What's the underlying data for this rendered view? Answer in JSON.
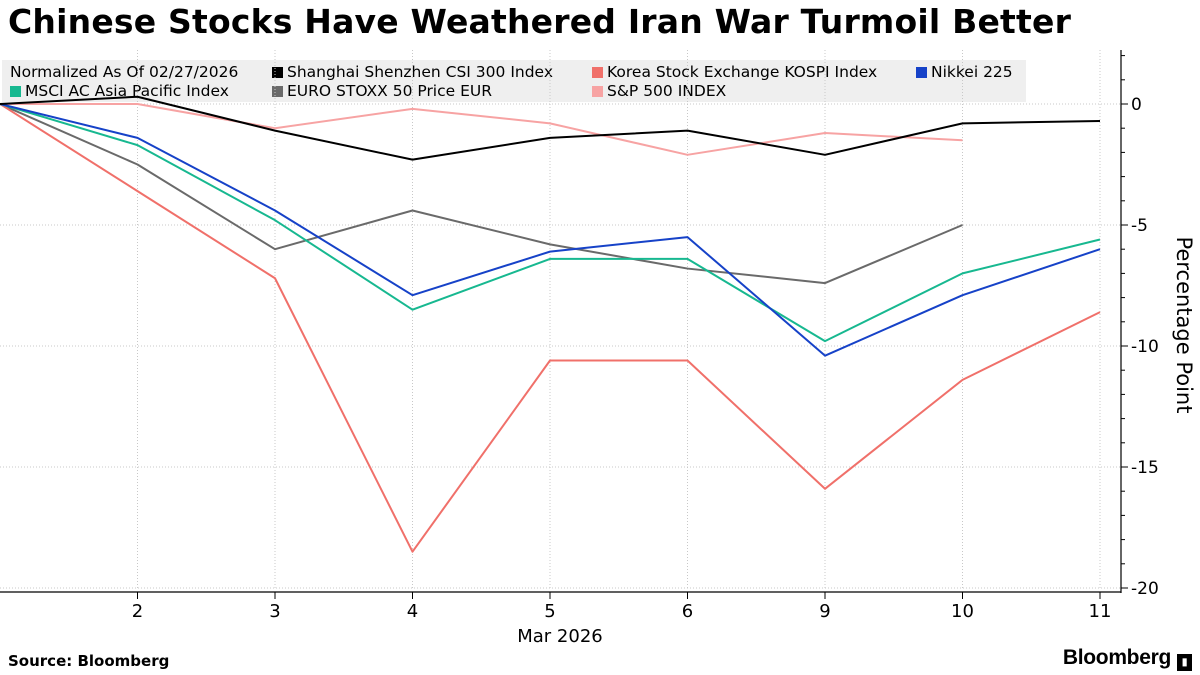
{
  "page": {
    "source": "Source: Bloomberg",
    "brand": "Bloomberg"
  },
  "chart_data": {
    "type": "line",
    "title": "Chinese Stocks Have Weathered Iran War Turmoil Better",
    "legend_note": "Normalized As Of 02/27/2026",
    "xlabel": "Mar 2026",
    "ylabel": "Percentage Point",
    "x": [
      "2/27",
      "2",
      "3",
      "4",
      "5",
      "6",
      "9",
      "10",
      "11"
    ],
    "x_tick_labels": [
      "2",
      "3",
      "4",
      "5",
      "6",
      "9",
      "10",
      "11"
    ],
    "y_ticks": [
      0,
      -5,
      -10,
      -15,
      -20
    ],
    "ylim": [
      -20.2,
      2.2
    ],
    "grid": true,
    "legend_position": "top-left",
    "series": [
      {
        "name": "Shanghai Shenzhen CSI 300 Index",
        "color": "#000000",
        "values": [
          0,
          0.3,
          -1.1,
          -2.3,
          -1.4,
          -1.1,
          -2.1,
          -0.8,
          -0.7
        ]
      },
      {
        "name": "Korea Stock Exchange KOSPI Index",
        "color": "#f0706a",
        "values": [
          0,
          -3.6,
          -7.2,
          -18.5,
          -10.6,
          -10.6,
          -15.9,
          -11.4,
          -8.6
        ]
      },
      {
        "name": "Nikkei 225",
        "color": "#1642c8",
        "values": [
          0,
          -1.4,
          -4.4,
          -7.9,
          -6.1,
          -5.5,
          -10.4,
          -7.9,
          -6.0
        ]
      },
      {
        "name": "MSCI AC Asia Pacific Index",
        "color": "#17b890",
        "values": [
          0,
          -1.7,
          -4.8,
          -8.5,
          -6.4,
          -6.4,
          -9.8,
          -7.0,
          -5.6
        ]
      },
      {
        "name": "EURO STOXX 50 Price EUR",
        "color": "#6a6a6a",
        "values": [
          0,
          -2.5,
          -6.0,
          -4.4,
          -5.8,
          -6.8,
          -7.4,
          -5.0,
          null
        ]
      },
      {
        "name": "S&P 500 INDEX",
        "color": "#f7a3a3",
        "values": [
          0,
          0.0,
          -1.0,
          -0.2,
          -0.8,
          -2.1,
          -1.2,
          -1.5,
          null
        ]
      }
    ]
  }
}
